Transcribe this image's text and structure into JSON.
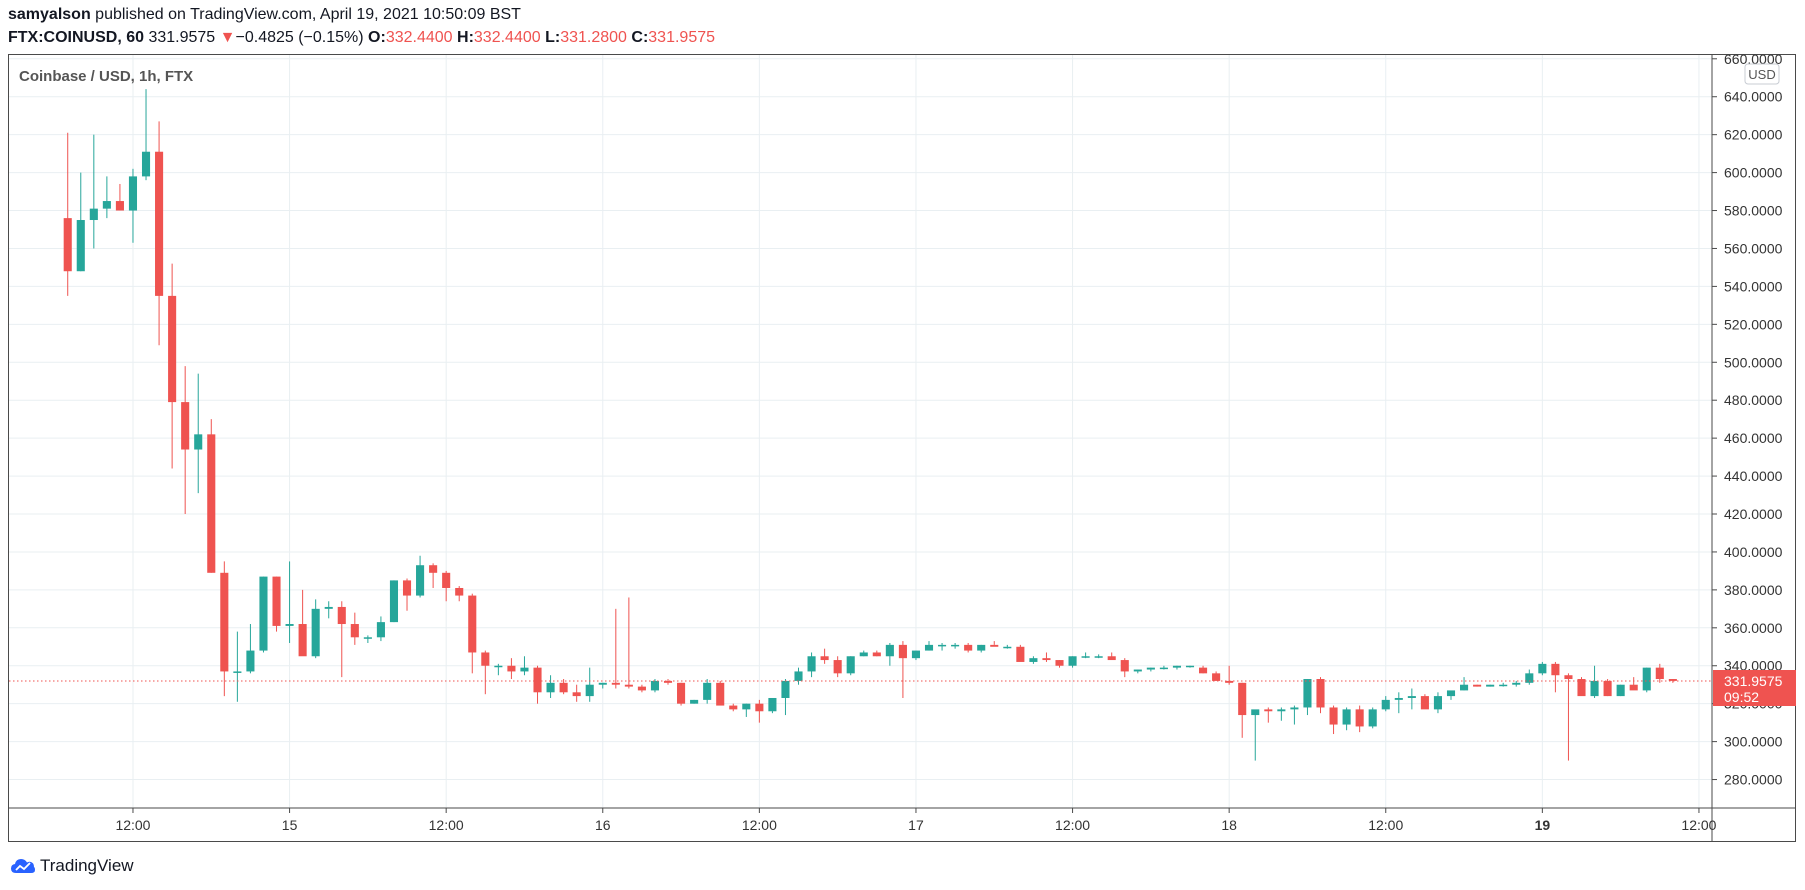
{
  "header": {
    "author": "samyalson",
    "published_text": " published on TradingView.com, April 19, 2021 10:50:09 BST",
    "symbol": "FTX:COINUSD, 60",
    "last": "331.9575",
    "change_arrow": "▼",
    "change": "−0.4825 (−0.15%)",
    "o_label": "O:",
    "o_value": "332.4400",
    "h_label": "H:",
    "h_value": "332.4400",
    "l_label": "L:",
    "l_value": "331.2800",
    "c_label": "C:",
    "c_value": "331.9575"
  },
  "footer": {
    "brand": "TradingView",
    "icon": "tradingview-cloud-icon"
  },
  "colors": {
    "up": "#26a69a",
    "down": "#ef5350",
    "grid": "#e9eff2",
    "axis_text": "#333333"
  },
  "chart_data": {
    "type": "candlestick",
    "title": "Coinbase / USD, 1h, FTX",
    "currency_badge": "USD",
    "ylim": [
      265,
      662
    ],
    "yticks": [
      280,
      300,
      320,
      340,
      360,
      380,
      400,
      420,
      440,
      460,
      480,
      500,
      520,
      540,
      560,
      580,
      600,
      620,
      640,
      660
    ],
    "ytick_labels": [
      "280.0000",
      "300.0000",
      "320.0000",
      "340.0000",
      "360.0000",
      "380.0000",
      "400.0000",
      "420.0000",
      "440.0000",
      "460.0000",
      "480.0000",
      "500.0000",
      "520.0000",
      "540.0000",
      "560.0000",
      "580.0000",
      "600.0000",
      "620.0000",
      "640.0000",
      "660.0000"
    ],
    "xlim": [
      -4.5,
      126
    ],
    "xticks": [
      {
        "x": 5,
        "label": "12:00",
        "bold": false
      },
      {
        "x": 17,
        "label": "15",
        "bold": false
      },
      {
        "x": 29,
        "label": "12:00",
        "bold": false
      },
      {
        "x": 41,
        "label": "16",
        "bold": false
      },
      {
        "x": 53,
        "label": "12:00",
        "bold": false
      },
      {
        "x": 65,
        "label": "17",
        "bold": false
      },
      {
        "x": 77,
        "label": "12:00",
        "bold": false
      },
      {
        "x": 89,
        "label": "18",
        "bold": false
      },
      {
        "x": 101,
        "label": "12:00",
        "bold": false
      },
      {
        "x": 113,
        "label": "19",
        "bold": true
      },
      {
        "x": 125,
        "label": "12:00",
        "bold": false
      }
    ],
    "last_price": 331.9575,
    "last_price_label": "331.9575",
    "countdown_label": "09:52",
    "ohlc": [
      [
        576,
        621,
        535,
        548
      ],
      [
        548,
        600,
        548,
        575
      ],
      [
        575,
        620,
        560,
        581
      ],
      [
        581,
        598,
        576,
        585
      ],
      [
        585,
        594,
        580,
        580
      ],
      [
        580,
        602,
        563,
        598
      ],
      [
        598,
        644,
        596,
        611
      ],
      [
        611,
        627,
        509,
        535
      ],
      [
        535,
        552,
        444,
        479
      ],
      [
        479,
        498,
        420,
        454
      ],
      [
        454,
        494,
        431,
        462
      ],
      [
        462,
        470,
        389,
        389
      ],
      [
        389,
        395,
        324,
        337
      ],
      [
        337,
        358,
        321,
        337
      ],
      [
        337,
        362,
        336,
        348
      ],
      [
        348,
        387,
        347,
        387
      ],
      [
        387,
        387,
        358,
        361
      ],
      [
        361,
        395,
        352,
        362
      ],
      [
        362,
        380,
        346,
        345
      ],
      [
        345,
        375,
        344,
        370
      ],
      [
        370,
        374,
        365,
        371
      ],
      [
        371,
        374,
        334,
        362
      ],
      [
        362,
        368,
        351,
        355
      ],
      [
        355,
        356,
        352,
        355
      ],
      [
        355,
        366,
        353,
        363
      ],
      [
        363,
        385,
        363,
        385
      ],
      [
        385,
        386,
        369,
        377
      ],
      [
        377,
        398,
        376,
        393
      ],
      [
        393,
        394,
        381,
        389
      ],
      [
        389,
        390,
        374,
        381
      ],
      [
        381,
        382,
        374,
        377
      ],
      [
        377,
        378,
        336,
        347
      ],
      [
        347,
        348,
        325,
        340
      ],
      [
        340,
        341,
        335,
        340
      ],
      [
        340,
        344,
        333,
        337
      ],
      [
        337,
        345,
        335,
        339
      ],
      [
        339,
        340,
        320,
        326
      ],
      [
        326,
        335,
        323,
        331
      ],
      [
        331,
        333,
        325,
        326
      ],
      [
        326,
        330,
        321,
        324
      ],
      [
        324,
        339,
        321,
        330
      ],
      [
        330,
        331,
        328,
        331
      ],
      [
        331,
        370,
        328,
        330
      ],
      [
        330,
        376,
        328,
        329
      ],
      [
        329,
        330,
        326,
        327
      ],
      [
        327,
        333,
        326,
        332
      ],
      [
        332,
        333,
        330,
        331
      ],
      [
        331,
        331,
        319,
        320
      ],
      [
        320,
        322,
        320,
        322
      ],
      [
        322,
        333,
        320,
        331
      ],
      [
        331,
        332,
        320,
        319
      ],
      [
        319,
        320,
        316,
        317
      ],
      [
        317,
        320,
        313,
        320
      ],
      [
        320,
        322,
        310,
        316
      ],
      [
        316,
        320,
        315,
        323
      ],
      [
        323,
        333,
        314,
        332
      ],
      [
        332,
        339,
        330,
        337
      ],
      [
        337,
        347,
        334,
        345
      ],
      [
        345,
        349,
        341,
        343
      ],
      [
        343,
        345,
        334,
        336
      ],
      [
        336,
        345,
        335,
        345
      ],
      [
        345,
        348,
        345,
        347
      ],
      [
        347,
        348,
        345,
        345
      ],
      [
        345,
        352,
        340,
        351
      ],
      [
        351,
        353,
        323,
        344
      ],
      [
        344,
        348,
        343,
        348
      ],
      [
        348,
        353,
        348,
        351
      ],
      [
        351,
        352,
        348,
        351
      ],
      [
        351,
        352,
        349,
        351
      ],
      [
        351,
        352,
        347,
        348
      ],
      [
        348,
        351,
        347,
        351
      ],
      [
        351,
        353,
        351,
        350
      ],
      [
        350,
        351,
        349,
        350
      ],
      [
        350,
        351,
        345,
        342
      ],
      [
        342,
        345,
        341,
        344
      ],
      [
        344,
        347,
        342,
        343
      ],
      [
        343,
        343,
        339,
        340
      ],
      [
        340,
        345,
        339,
        345
      ],
      [
        345,
        347,
        344,
        345
      ],
      [
        345,
        346,
        344,
        345
      ],
      [
        345,
        347,
        344,
        343
      ],
      [
        343,
        344,
        334,
        337
      ],
      [
        337,
        338,
        336,
        338
      ],
      [
        338,
        339,
        337,
        339
      ],
      [
        339,
        340,
        338,
        339
      ],
      [
        339,
        340,
        338,
        340
      ],
      [
        340,
        340,
        339,
        340
      ],
      [
        339,
        340,
        336,
        336
      ],
      [
        336,
        337,
        333,
        332
      ],
      [
        332,
        340,
        330,
        331
      ],
      [
        331,
        331,
        302,
        314
      ],
      [
        314,
        316,
        290,
        317
      ],
      [
        317,
        318,
        310,
        316
      ],
      [
        316,
        318,
        311,
        317
      ],
      [
        317,
        319,
        309,
        318
      ],
      [
        318,
        333,
        314,
        333
      ],
      [
        333,
        334,
        315,
        318
      ],
      [
        318,
        319,
        304,
        309
      ],
      [
        309,
        318,
        306,
        317
      ],
      [
        317,
        319,
        305,
        308
      ],
      [
        308,
        318,
        307,
        317
      ],
      [
        317,
        324,
        316,
        322
      ],
      [
        322,
        326,
        315,
        323
      ],
      [
        323,
        328,
        317,
        324
      ],
      [
        324,
        325,
        318,
        317
      ],
      [
        317,
        326,
        315,
        324
      ],
      [
        324,
        325,
        322,
        327
      ],
      [
        327,
        334,
        327,
        330
      ],
      [
        330,
        330,
        329,
        329
      ],
      [
        329,
        330,
        329,
        330
      ],
      [
        330,
        331,
        329,
        330
      ],
      [
        330,
        332,
        329,
        331
      ],
      [
        331,
        338,
        330,
        336
      ],
      [
        336,
        342,
        335,
        341
      ],
      [
        341,
        342,
        326,
        335
      ],
      [
        335,
        336,
        290,
        333
      ],
      [
        333,
        334,
        325,
        324
      ],
      [
        324,
        340,
        323,
        332
      ],
      [
        332,
        333,
        324,
        324
      ],
      [
        324,
        330,
        324,
        330
      ],
      [
        330,
        334,
        328,
        327
      ],
      [
        327,
        339,
        326,
        339
      ],
      [
        339,
        341,
        331,
        333
      ],
      [
        333,
        333,
        331,
        332
      ]
    ]
  }
}
